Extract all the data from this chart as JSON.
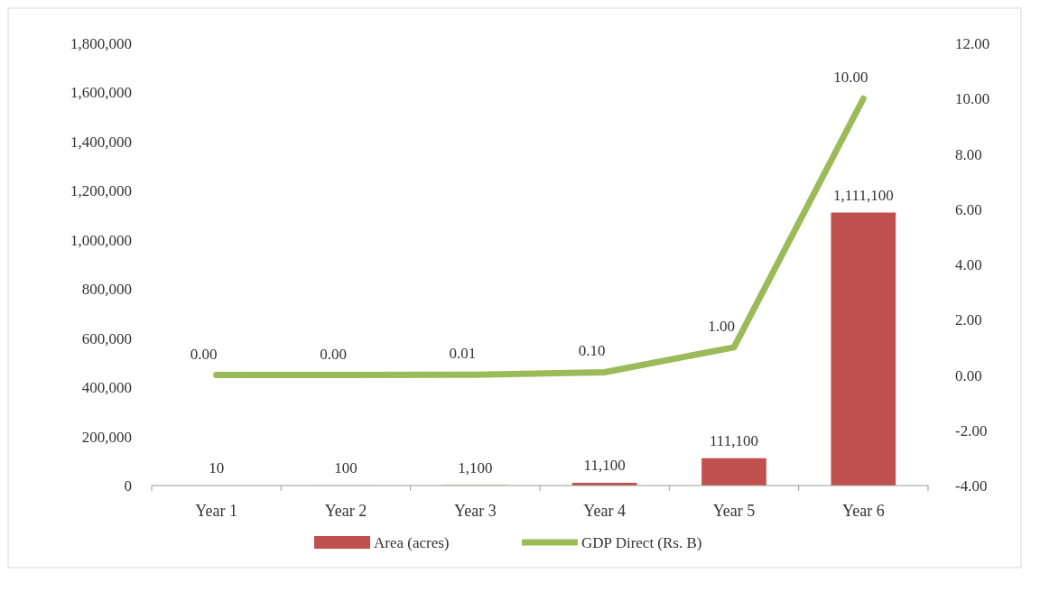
{
  "chart_data": {
    "type": "bar",
    "categories": [
      "Year 1",
      "Year 2",
      "Year 3",
      "Year 4",
      "Year 5",
      "Year 6"
    ],
    "series": [
      {
        "name": "Area (acres)",
        "color": "#c0504d",
        "values": [
          10,
          100,
          1100,
          11100,
          111100,
          1111100
        ],
        "value_labels": [
          "10",
          "100",
          "1,100",
          "11,100",
          "111,100",
          "1,111,100"
        ]
      },
      {
        "name": "GDP Direct (Rs. B)",
        "type": "line",
        "axis": "y2",
        "color": "#9bbb59",
        "values": [
          0,
          0,
          0.01,
          0.1,
          1,
          10
        ],
        "value_labels": [
          "0.00",
          "0.00",
          "0.01",
          "0.10",
          "1.00",
          "10.00"
        ]
      }
    ],
    "ylim": [
      0,
      1800000
    ],
    "yticks": [
      0,
      {
        "value": 200000,
        "label": "200,000"
      },
      {
        "value": 400000,
        "label": "400,000"
      },
      {
        "value": 600000,
        "label": "600,000"
      },
      {
        "value": 800000,
        "label": "800,000"
      },
      {
        "value": 1000000,
        "label": "1,000,000"
      },
      {
        "value": 1200000,
        "label": "1,200,000"
      },
      {
        "value": 1400000,
        "label": "1,400,000"
      },
      {
        "value": 1600000,
        "label": "1,600,000"
      },
      {
        "value": 1800000,
        "label": "1,800,000"
      }
    ],
    "y2lim": [
      -4,
      12
    ],
    "y2ticks": [
      {
        "value": -4,
        "label": "-4.00"
      },
      {
        "value": -2,
        "label": "-2.00"
      },
      {
        "value": 0,
        "label": "0.00"
      },
      {
        "value": 2,
        "label": "2.00"
      },
      {
        "value": 4,
        "label": "4.00"
      },
      {
        "value": 6,
        "label": "6.00"
      },
      {
        "value": 8,
        "label": "8.00"
      },
      {
        "value": 10,
        "label": "10.00"
      },
      {
        "value": 12,
        "label": "12.00"
      }
    ],
    "legend": "bottom",
    "grid": false,
    "marker": "none",
    "line_style": "solid"
  }
}
